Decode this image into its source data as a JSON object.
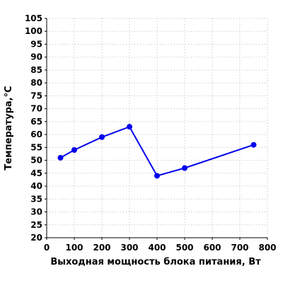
{
  "chart_data": {
    "type": "line",
    "title": "",
    "xlabel": "Выходная мощность блока питания, Вт",
    "ylabel": "Температура,°C",
    "xlim": [
      0,
      800
    ],
    "ylim": [
      20,
      105
    ],
    "xticks": [
      0,
      100,
      200,
      300,
      400,
      500,
      600,
      700,
      800
    ],
    "yticks": [
      20,
      25,
      30,
      35,
      40,
      45,
      50,
      55,
      60,
      65,
      70,
      75,
      80,
      85,
      90,
      95,
      100,
      105
    ],
    "grid": true,
    "grid_style": "dotted",
    "legend": false,
    "series": [
      {
        "color": "#0000ee",
        "x": [
          50,
          100,
          200,
          300,
          400,
          500,
          750
        ],
        "y": [
          51,
          54,
          59,
          63,
          44,
          47,
          56
        ]
      }
    ]
  }
}
